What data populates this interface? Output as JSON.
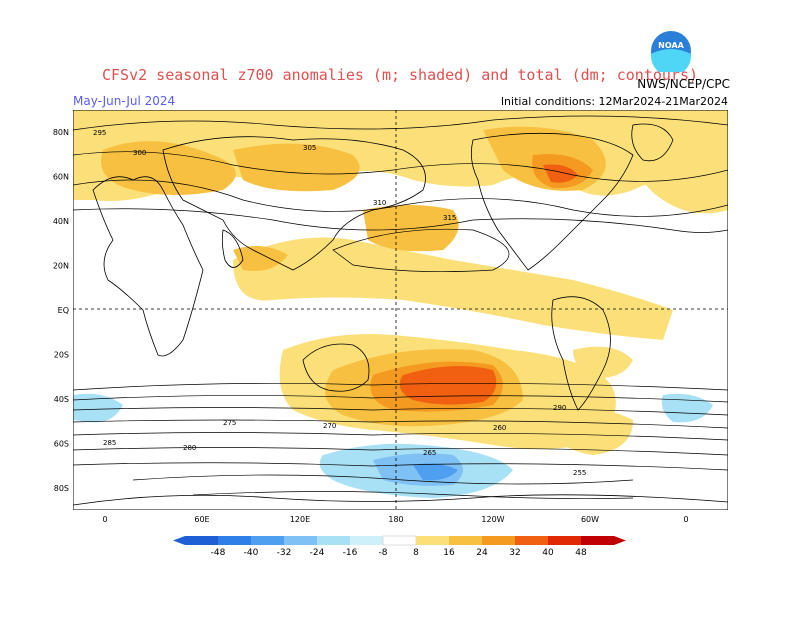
{
  "header": {
    "title": "CFSv2 seasonal z700 anomalies (m; shaded) and total (dm; contours)",
    "org": "NWS/NCEP/CPC",
    "season": "May-Jun-Jul 2024",
    "initial_conditions": "Initial conditions: 12Mar2024-21Mar2024"
  },
  "logo": {
    "icon": "noaa-logo",
    "text": "NOAA"
  },
  "map": {
    "lat_ticks": [
      "80N",
      "60N",
      "40N",
      "20N",
      "EQ",
      "20S",
      "40S",
      "60S",
      "80S"
    ],
    "lon_ticks": [
      "0",
      "60E",
      "120E",
      "180",
      "120W",
      "60W",
      "0"
    ],
    "contour_labels": [
      "295",
      "300",
      "305",
      "310",
      "315",
      "285",
      "280",
      "275",
      "270",
      "265",
      "260",
      "255",
      "290"
    ]
  },
  "colorbar": {
    "labels": [
      "-48",
      "-40",
      "-32",
      "-24",
      "-16",
      "-8",
      "8",
      "16",
      "24",
      "32",
      "40",
      "48"
    ],
    "colors": [
      "#1f5fd6",
      "#2f7fe8",
      "#4f9ff0",
      "#7fc0f5",
      "#a8e0f5",
      "#cdf0fa",
      "#ffffff",
      "#fbe07a",
      "#f8c040",
      "#f59a20",
      "#f06010",
      "#e02a05",
      "#c00000"
    ]
  }
}
